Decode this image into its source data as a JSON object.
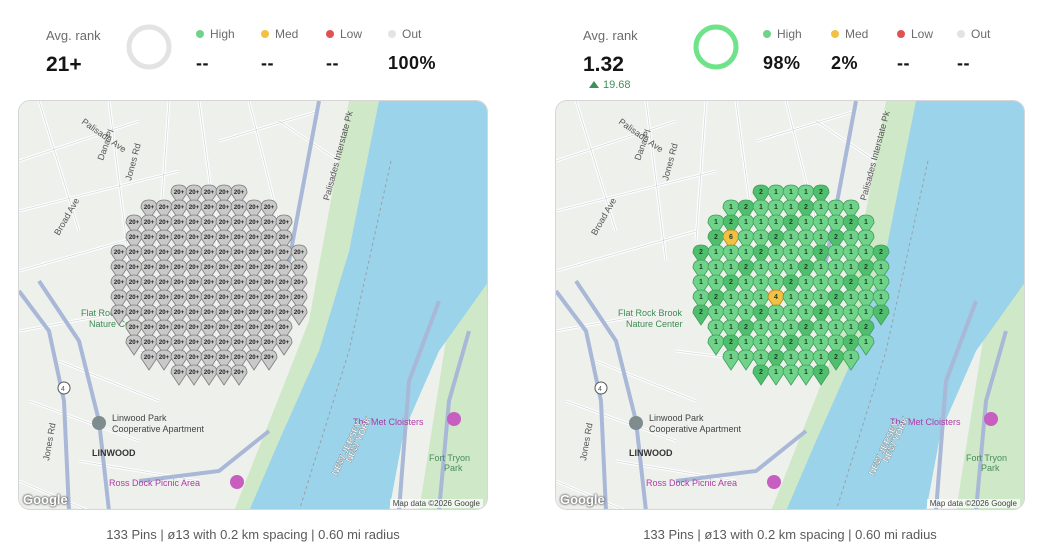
{
  "panels": [
    {
      "avg_label": "Avg. rank",
      "avg_value": "21+",
      "avg_delta": "",
      "ring_fraction": 0,
      "ring_color": "#e3e3e3",
      "categories": [
        {
          "label": "High",
          "value": "--",
          "color": "#6fd38a"
        },
        {
          "label": "Med",
          "value": "--",
          "color": "#f2c043"
        },
        {
          "label": "Low",
          "value": "--",
          "color": "#e05252"
        },
        {
          "label": "Out",
          "value": "100%",
          "color": "#e3e3e3"
        }
      ],
      "caption": "133 Pins | ø13 with 0.2 km spacing | 0.60 mi radius",
      "pin_label": "20+",
      "pin_style": "gray",
      "map_labels": [
        "Palisade Ave",
        "Dana Pl",
        "Jones Rd",
        "Broad Ave",
        "Palisades Interstate Pk",
        "Flat Rock Brook Nature Center",
        "Jones Rd",
        "Linwood Park Cooperative Apartment",
        "LINWOOD",
        "Ross Dock Picnic Area",
        "The Met Cloisters",
        "NEW JERSEY",
        "NEW YORK",
        "Fort Tryon Park",
        "4"
      ],
      "google": "Google",
      "mapdata": "Map data ©2026 Google"
    },
    {
      "avg_label": "Avg. rank",
      "avg_value": "1.32",
      "avg_delta": "19.68",
      "ring_fraction": 1.0,
      "ring_color": "#6fe38a",
      "categories": [
        {
          "label": "High",
          "value": "98%",
          "color": "#6fd38a"
        },
        {
          "label": "Med",
          "value": "2%",
          "color": "#f2c043"
        },
        {
          "label": "Low",
          "value": "--",
          "color": "#e05252"
        },
        {
          "label": "Out",
          "value": "--",
          "color": "#e3e3e3"
        }
      ],
      "caption": "133 Pins | ø13 with 0.2 km spacing | 0.60 mi radius",
      "pin_label": "1",
      "pin_style": "green",
      "special_pins": [
        {
          "label": "6",
          "color": "#f2c043"
        },
        {
          "label": "4",
          "color": "#f2c043"
        }
      ],
      "map_labels": [
        "Palisade Ave",
        "Dana Pl",
        "Jones Rd",
        "Broad Ave",
        "Palisades Interstate Pk",
        "Flat Rock Brook Nature Center",
        "Jones Rd",
        "Linwood Park Cooperative Apartment",
        "LINWOOD",
        "Ross Dock Picnic Area",
        "The Met Cloisters",
        "NEW JERSEY",
        "NEW YORK",
        "Fort Tryon Park",
        "4"
      ],
      "google": "Google",
      "mapdata": "Map data ©2026 Google"
    }
  ],
  "colors": {
    "water": "#9bd3ea",
    "land": "#eef0ec",
    "park": "#cfe8c8",
    "road_major": "#a9b8d6",
    "road_minor": "#ffffff"
  }
}
